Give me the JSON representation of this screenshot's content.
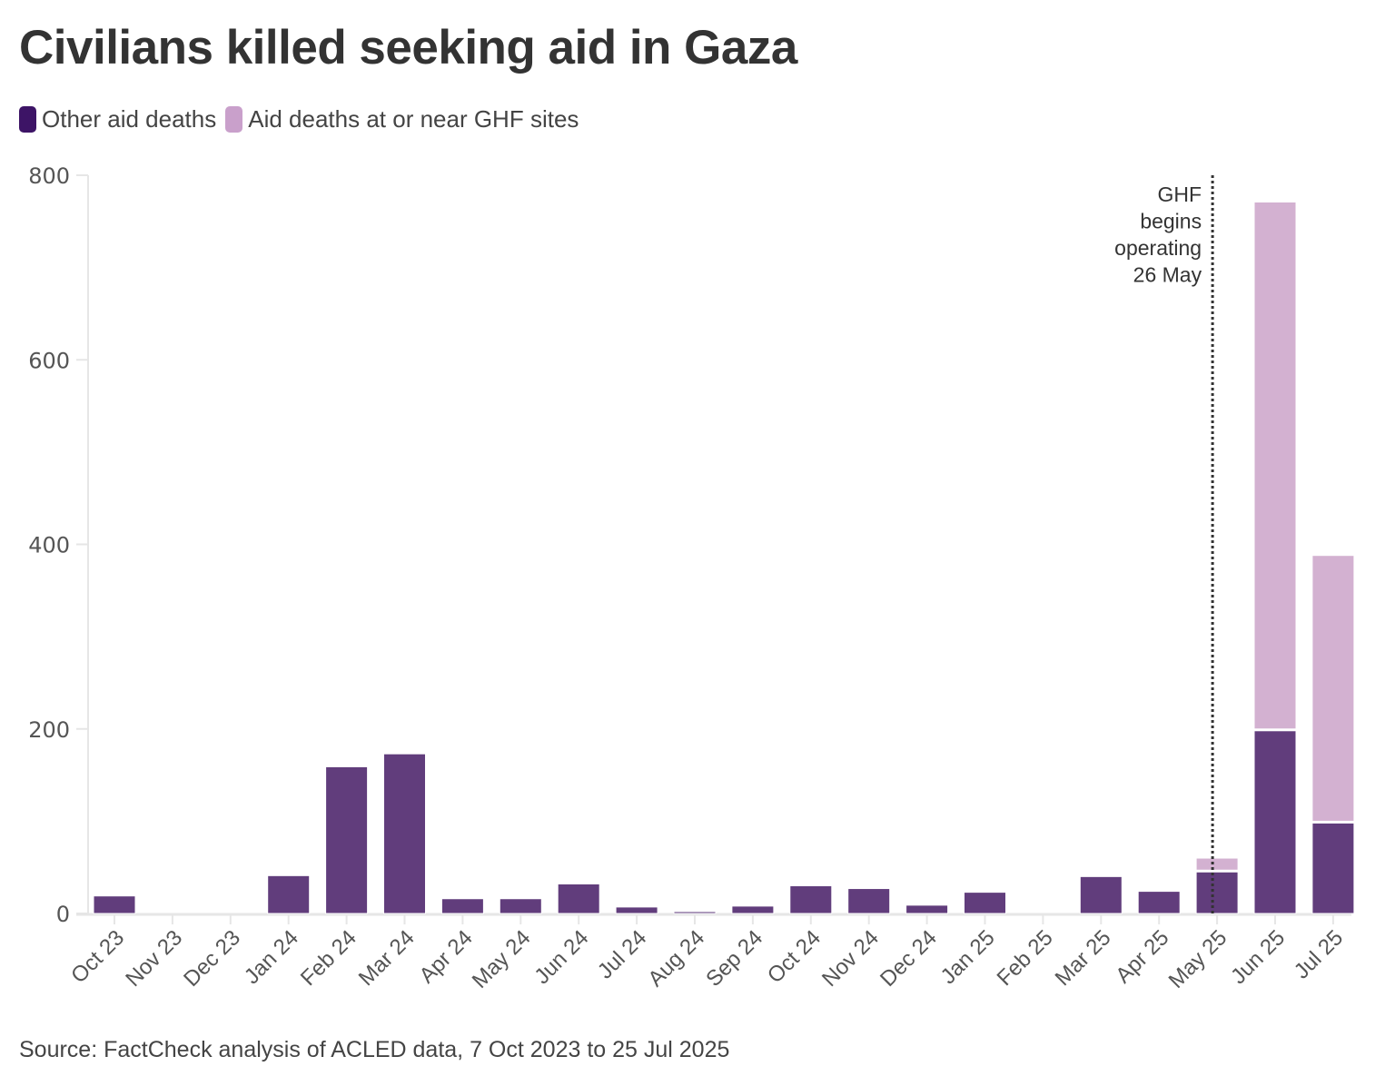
{
  "colors": {
    "other_bar": "#613d7c",
    "ghf_bar": "#d3b1d1",
    "other_swatch": "#3d1466",
    "ghf_swatch": "#c9a0cb",
    "axis": "#e6e6e6",
    "annotation_line": "#333333"
  },
  "chart_data": {
    "type": "bar",
    "stacked": true,
    "title": "Civilians killed seeking aid in Gaza",
    "xlabel": "",
    "ylabel": "",
    "ylim": [
      0,
      800
    ],
    "yticks": [
      0,
      200,
      400,
      600,
      800
    ],
    "grid": false,
    "legend_position": "top-left",
    "categories": [
      "Oct 23",
      "Nov 23",
      "Dec 23",
      "Jan 24",
      "Feb 24",
      "Mar 24",
      "Apr 24",
      "May 24",
      "Jun 24",
      "Jul 24",
      "Aug 24",
      "Sep 24",
      "Oct 24",
      "Nov 24",
      "Dec 24",
      "Jan 25",
      "Feb 25",
      "Mar 25",
      "Apr 25",
      "May 25",
      "Jun 25",
      "Jul 25"
    ],
    "series": [
      {
        "name": "Other aid deaths",
        "values": [
          19,
          0,
          0,
          41,
          159,
          173,
          16,
          16,
          32,
          7,
          2,
          8,
          30,
          27,
          9,
          23,
          0,
          40,
          24,
          45,
          198,
          98
        ]
      },
      {
        "name": "Aid deaths at or near GHF sites",
        "values": [
          0,
          0,
          0,
          0,
          0,
          0,
          0,
          0,
          0,
          0,
          0,
          0,
          0,
          0,
          0,
          0,
          0,
          0,
          0,
          15,
          573,
          290
        ]
      }
    ],
    "annotations": [
      {
        "x": "26 May 2025",
        "after_category": "May 25",
        "lines": [
          "GHF",
          "begins",
          "operating",
          "26 May"
        ],
        "style": "dotted-vertical-line"
      }
    ],
    "source": "Source: FactCheck analysis of ACLED data, 7 Oct 2023 to 25 Jul 2025"
  },
  "legend": [
    {
      "label": "Other aid deaths",
      "series": 0
    },
    {
      "label": "Aid deaths at or near GHF sites",
      "series": 1
    }
  ]
}
